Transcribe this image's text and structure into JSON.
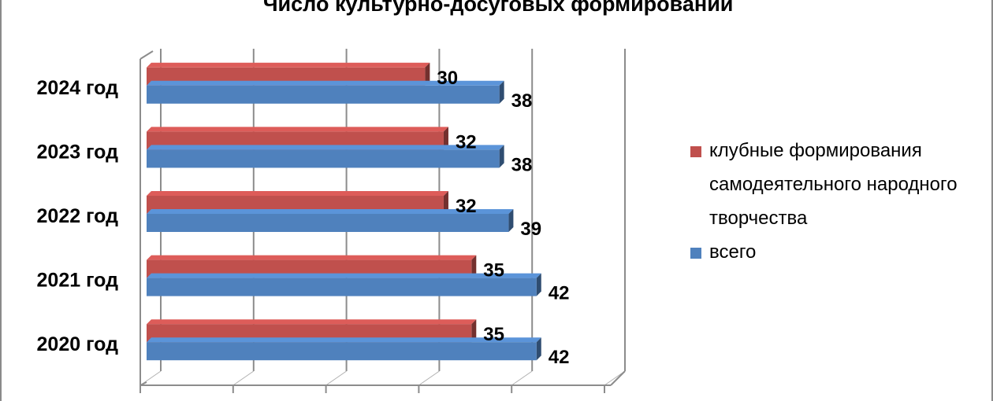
{
  "chart_data": {
    "type": "bar",
    "orientation": "horizontal",
    "title": "Число культурно-досуговых формирований",
    "categories": [
      "2024 год",
      "2023 год",
      "2022 год",
      "2021 год",
      "2020 год"
    ],
    "series": [
      {
        "name": "клубные формирования самодеятельного народного творчества",
        "values": [
          30,
          32,
          32,
          35,
          35
        ],
        "color": "#c0504d"
      },
      {
        "name": "всего",
        "values": [
          38,
          38,
          39,
          42,
          42
        ],
        "color": "#4f81bd"
      }
    ],
    "xlim": [
      0,
      50
    ],
    "grid": true,
    "legend_position": "right",
    "style": "3d-clustered"
  }
}
